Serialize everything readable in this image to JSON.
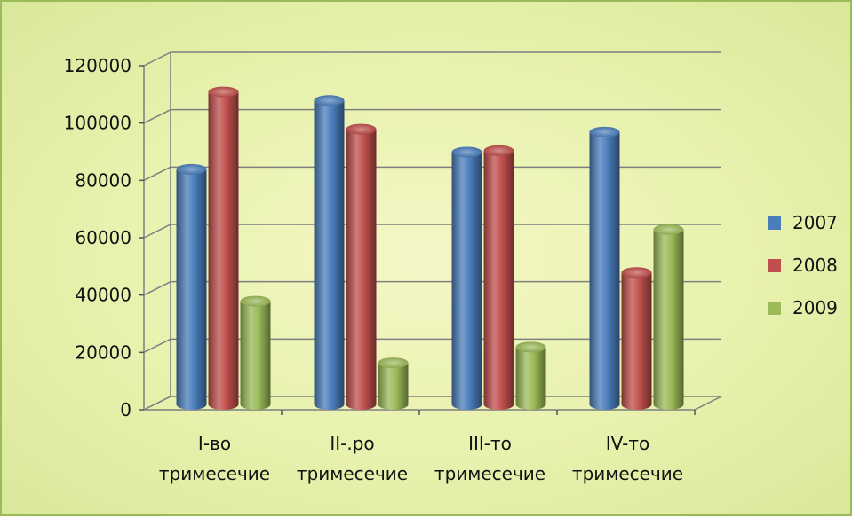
{
  "chart_data": {
    "type": "bar",
    "categories": [
      [
        "I-во",
        "тримесечие"
      ],
      [
        "II-.ро",
        "тримесечие"
      ],
      [
        "III-то",
        "тримесечие"
      ],
      [
        "IV-то",
        "тримесечие"
      ]
    ],
    "series": [
      {
        "name": "2007",
        "color": "#4a7ebb",
        "values": [
          82000,
          106000,
          88000,
          95000
        ]
      },
      {
        "name": "2008",
        "color": "#c0504d",
        "values": [
          109000,
          96000,
          88500,
          46000
        ]
      },
      {
        "name": "2009",
        "color": "#9bbb59",
        "values": [
          36000,
          14500,
          20000,
          61000
        ]
      }
    ],
    "y_ticks": [
      "0",
      "20000",
      "40000",
      "60000",
      "80000",
      "100000",
      "120000"
    ],
    "ylim": [
      0,
      120000
    ],
    "grid": true,
    "legend_position": "right",
    "style": "3d-cylinder"
  }
}
